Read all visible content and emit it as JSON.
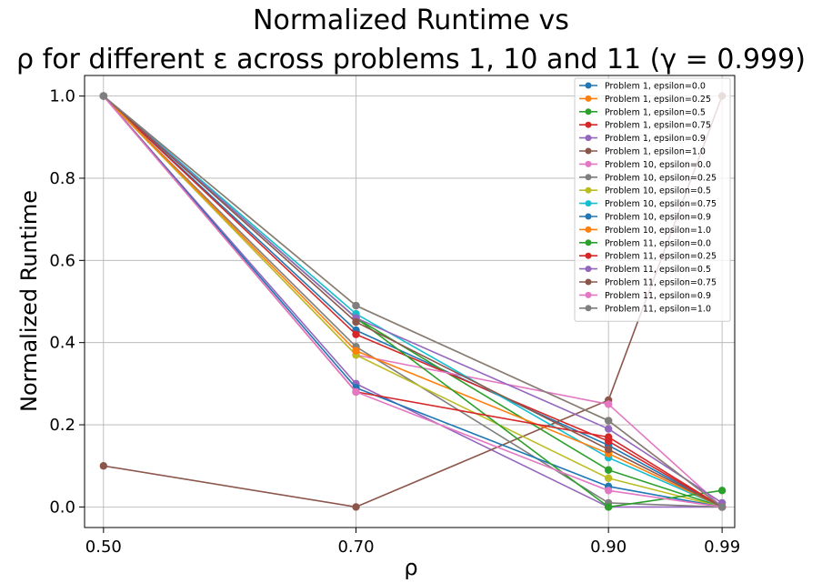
{
  "chart_data": {
    "type": "line",
    "title_line1": "Normalized Runtime vs",
    "title_line2": "ρ for different ε across problems 1, 10 and 11 (γ = 0.999)",
    "xlabel": "ρ",
    "ylabel": "Normalized Runtime",
    "x": [
      0.5,
      0.7,
      0.9,
      0.99
    ],
    "x_tick_labels": [
      "0.50",
      "0.70",
      "0.90",
      "0.99"
    ],
    "y_ticks": [
      0.0,
      0.2,
      0.4,
      0.6,
      0.8,
      1.0
    ],
    "y_tick_labels": [
      "0.0",
      "0.2",
      "0.4",
      "0.6",
      "0.8",
      "1.0"
    ],
    "xlim": [
      0.485,
      1.0
    ],
    "ylim": [
      -0.05,
      1.05
    ],
    "grid": true,
    "legend_position": "top-right",
    "series": [
      {
        "name": "Problem 1, epsilon=0.0",
        "color": "#1f77b4",
        "values": [
          1.0,
          0.43,
          0.15,
          0.0
        ]
      },
      {
        "name": "Problem 1, epsilon=0.25",
        "color": "#ff7f0e",
        "values": [
          1.0,
          0.49,
          0.21,
          0.0
        ]
      },
      {
        "name": "Problem 1, epsilon=0.5",
        "color": "#2ca02c",
        "values": [
          1.0,
          0.46,
          0.09,
          0.0
        ]
      },
      {
        "name": "Problem 1, epsilon=0.75",
        "color": "#d62728",
        "values": [
          1.0,
          0.42,
          0.16,
          0.0
        ]
      },
      {
        "name": "Problem 1, epsilon=0.9",
        "color": "#9467bd",
        "values": [
          1.0,
          0.3,
          0.0,
          0.0
        ]
      },
      {
        "name": "Problem 1, epsilon=1.0",
        "color": "#8c564b",
        "values": [
          0.1,
          0.0,
          0.26,
          1.0
        ]
      },
      {
        "name": "Problem 10, epsilon=0.0",
        "color": "#e377c2",
        "values": [
          1.0,
          0.37,
          0.25,
          0.0
        ]
      },
      {
        "name": "Problem 10, epsilon=0.25",
        "color": "#7f7f7f",
        "values": [
          1.0,
          0.39,
          0.01,
          0.0
        ]
      },
      {
        "name": "Problem 10, epsilon=0.5",
        "color": "#bcbd22",
        "values": [
          1.0,
          0.37,
          0.07,
          0.0
        ]
      },
      {
        "name": "Problem 10, epsilon=0.75",
        "color": "#17becf",
        "values": [
          1.0,
          0.47,
          0.12,
          0.0
        ]
      },
      {
        "name": "Problem 10, epsilon=0.9",
        "color": "#1f77b4",
        "values": [
          1.0,
          0.29,
          0.05,
          0.0
        ]
      },
      {
        "name": "Problem 10, epsilon=1.0",
        "color": "#ff7f0e",
        "values": [
          1.0,
          0.38,
          0.13,
          0.0
        ]
      },
      {
        "name": "Problem 11, epsilon=0.0",
        "color": "#2ca02c",
        "values": [
          1.0,
          0.46,
          0.0,
          0.04
        ]
      },
      {
        "name": "Problem 11, epsilon=0.25",
        "color": "#d62728",
        "values": [
          1.0,
          0.28,
          0.17,
          0.0
        ]
      },
      {
        "name": "Problem 11, epsilon=0.5",
        "color": "#9467bd",
        "values": [
          1.0,
          0.46,
          0.19,
          0.01
        ]
      },
      {
        "name": "Problem 11, epsilon=0.75",
        "color": "#8c564b",
        "values": [
          1.0,
          0.45,
          0.14,
          0.0
        ]
      },
      {
        "name": "Problem 11, epsilon=0.9",
        "color": "#e377c2",
        "values": [
          1.0,
          0.28,
          0.04,
          0.0
        ]
      },
      {
        "name": "Problem 11, epsilon=1.0",
        "color": "#7f7f7f",
        "values": [
          1.0,
          0.49,
          0.21,
          0.0
        ]
      }
    ]
  }
}
